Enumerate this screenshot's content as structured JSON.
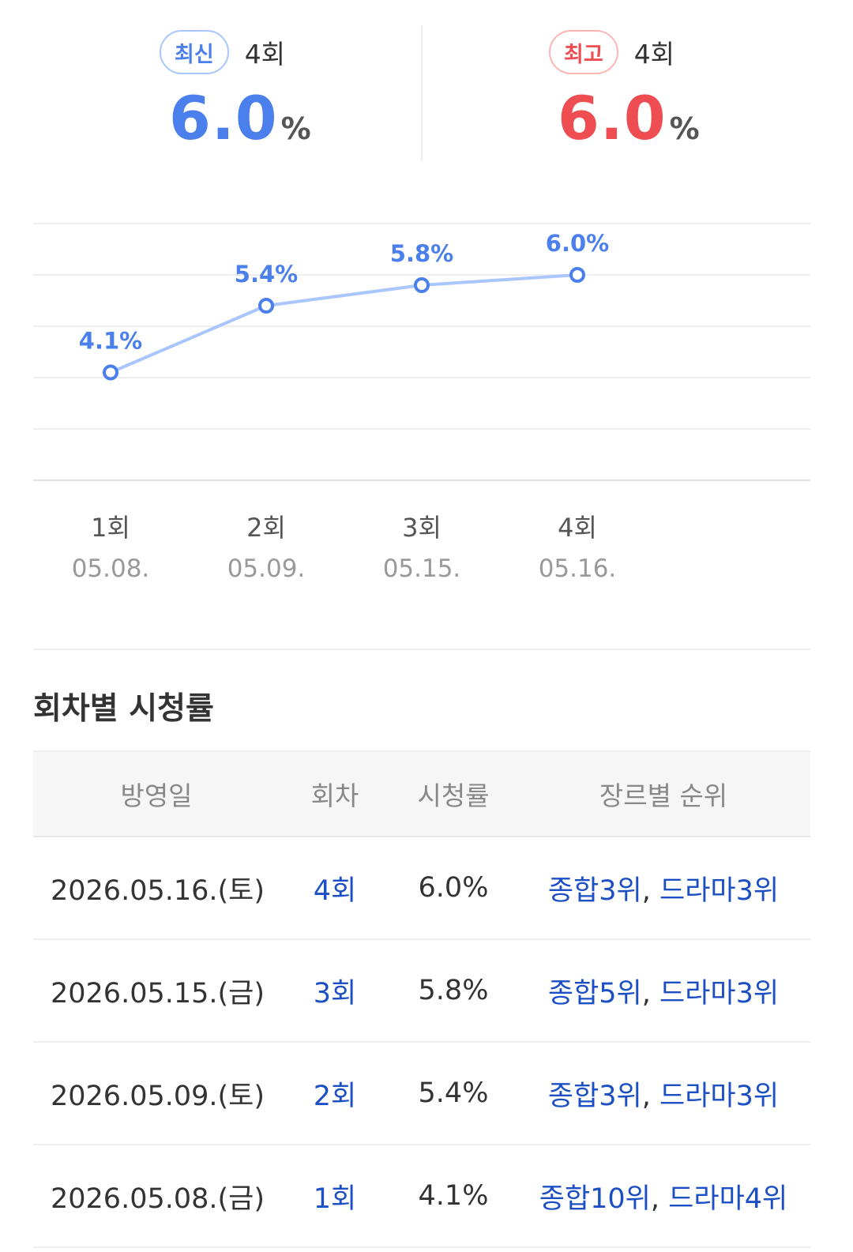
{
  "summary": {
    "latest": {
      "badge": "최신",
      "episode": "4회",
      "value": "6.0",
      "unit": "%"
    },
    "highest": {
      "badge": "최고",
      "episode": "4회",
      "value": "6.0",
      "unit": "%"
    }
  },
  "colors": {
    "blue": "#4a7fec",
    "red": "#ee4e52",
    "line": "#a9c6ff",
    "link": "#1d4fc4"
  },
  "chart_data": {
    "type": "line",
    "categories": [
      "1회",
      "2회",
      "3회",
      "4회"
    ],
    "dates": [
      "05.08.",
      "05.09.",
      "05.15.",
      "05.16."
    ],
    "values": [
      4.1,
      5.4,
      5.8,
      6.0
    ],
    "labels": [
      "4.1%",
      "5.4%",
      "5.8%",
      "6.0%"
    ],
    "ylim": [
      2.0,
      7.0
    ],
    "grid": true
  },
  "section": {
    "title": "회차별 시청률"
  },
  "table": {
    "headers": [
      "방영일",
      "회차",
      "시청률",
      "장르별 순위"
    ],
    "rows": [
      {
        "date": "2026.05.16.(토)",
        "episode": "4회",
        "rating": "6.0%",
        "rank_overall": "종합3위",
        "sep": ",",
        "rank_genre": "드라마3위"
      },
      {
        "date": "2026.05.15.(금)",
        "episode": "3회",
        "rating": "5.8%",
        "rank_overall": "종합5위",
        "sep": ",",
        "rank_genre": "드라마3위"
      },
      {
        "date": "2026.05.09.(토)",
        "episode": "2회",
        "rating": "5.4%",
        "rank_overall": "종합3위",
        "sep": ",",
        "rank_genre": "드라마3위"
      },
      {
        "date": "2026.05.08.(금)",
        "episode": "1회",
        "rating": "4.1%",
        "rank_overall": "종합10위",
        "sep": ",",
        "rank_genre": "드라마4위"
      }
    ]
  }
}
